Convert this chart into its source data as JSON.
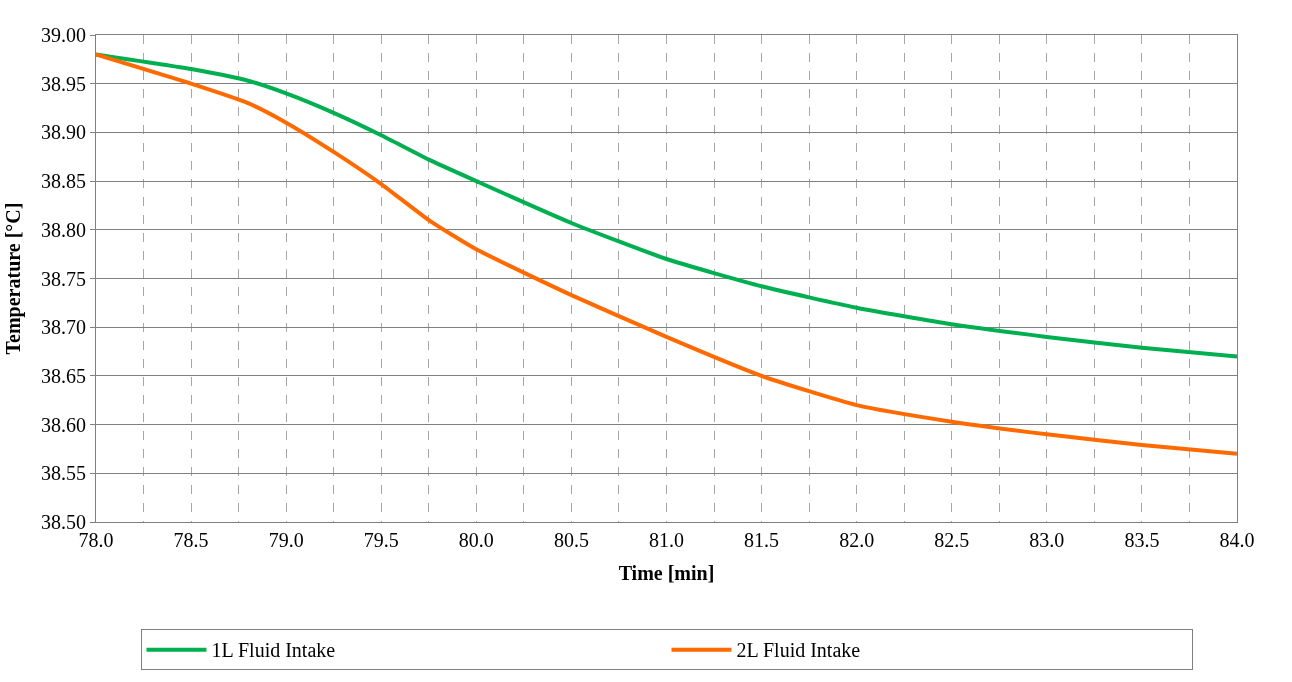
{
  "chart_data": {
    "type": "line",
    "xlabel": "Time [min]",
    "ylabel": "Temperature [°C]",
    "xlim": [
      78.0,
      84.0
    ],
    "xticks": [
      {
        "value": 78,
        "label": "78.0"
      },
      {
        "value": 78.5,
        "label": "78.5"
      },
      {
        "value": 79,
        "label": "79.0"
      },
      {
        "value": 79.5,
        "label": "79.5"
      },
      {
        "value": 80,
        "label": "80.0"
      },
      {
        "value": 80.5,
        "label": "80.5"
      },
      {
        "value": 81,
        "label": "81.0"
      },
      {
        "value": 81.5,
        "label": "81.5"
      },
      {
        "value": 82,
        "label": "82.0"
      },
      {
        "value": 82.5,
        "label": "82.5"
      },
      {
        "value": 83,
        "label": "83.0"
      },
      {
        "value": 83.5,
        "label": "83.5"
      },
      {
        "value": 84,
        "label": "84.0"
      }
    ],
    "ylim": [
      38.5,
      39.0
    ],
    "yticks": [
      {
        "value": 38.5,
        "label": "38.50"
      },
      {
        "value": 38.55,
        "label": "38.55"
      },
      {
        "value": 38.6,
        "label": "38.60"
      },
      {
        "value": 38.65,
        "label": "38.65"
      },
      {
        "value": 38.7,
        "label": "38.70"
      },
      {
        "value": 38.75,
        "label": "38.75"
      },
      {
        "value": 38.8,
        "label": "38.80"
      },
      {
        "value": 38.85,
        "label": "38.85"
      },
      {
        "value": 38.9,
        "label": "38.90"
      },
      {
        "value": 38.95,
        "label": "38.95"
      },
      {
        "value": 39.0,
        "label": "39.00"
      }
    ],
    "x": [
      78.0,
      78.5,
      78.8,
      79.0,
      79.25,
      79.5,
      79.75,
      80.0,
      80.5,
      81.0,
      81.5,
      82.0,
      82.5,
      83.0,
      83.5,
      84.0
    ],
    "series": [
      {
        "name": "1L Fluid Intake",
        "color": "#00b050",
        "values": [
          38.98,
          38.965,
          38.953,
          38.94,
          38.92,
          38.897,
          38.872,
          38.85,
          38.807,
          38.77,
          38.742,
          38.72,
          38.703,
          38.69,
          38.679,
          38.67
        ]
      },
      {
        "name": "2L Fluid Intake",
        "color": "#ff6a00",
        "values": [
          38.98,
          38.95,
          38.93,
          38.91,
          38.88,
          38.847,
          38.81,
          38.78,
          38.733,
          38.69,
          38.65,
          38.62,
          38.603,
          38.59,
          38.579,
          38.57
        ]
      }
    ],
    "grid": true,
    "legend": "bottom",
    "marker": "none",
    "line_style": "solid"
  }
}
